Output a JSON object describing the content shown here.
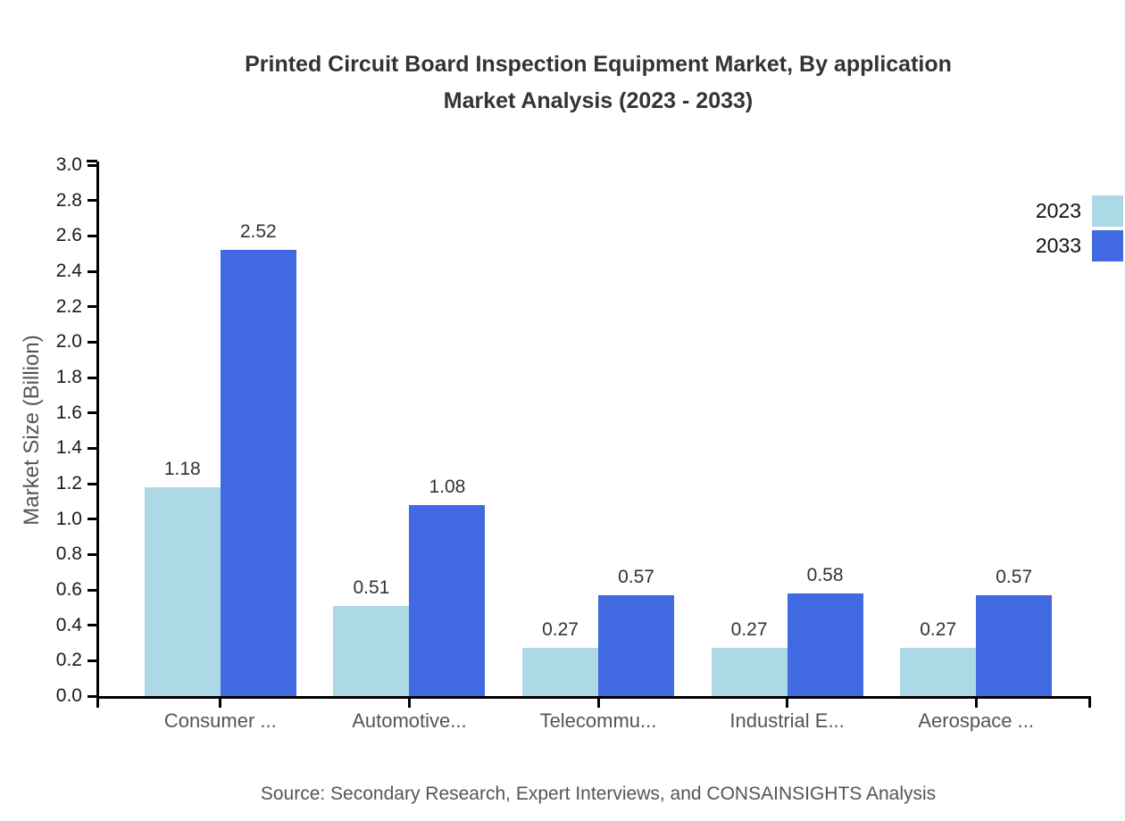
{
  "title": {
    "line1": "Printed Circuit Board Inspection Equipment Market, By application",
    "line2": "Market Analysis (2023 - 2033)"
  },
  "legend": {
    "items": [
      {
        "label": "2023",
        "color": "#ADD8E6"
      },
      {
        "label": "2033",
        "color": "#4169E1"
      }
    ]
  },
  "y_axis": {
    "label": "Market Size (Billion)",
    "tick_labels": [
      "0.0",
      "0.2",
      "0.4",
      "0.6",
      "0.8",
      "1.0",
      "1.2",
      "1.4",
      "1.6",
      "1.8",
      "2.0",
      "2.2",
      "2.4",
      "2.6",
      "2.8",
      "3.0"
    ]
  },
  "source": "Source: Secondary Research, Expert Interviews, and CONSAINSIGHTS Analysis",
  "chart_data": {
    "type": "bar",
    "title": "Printed Circuit Board Inspection Equipment Market, By application Market Analysis (2023 - 2033)",
    "categories": [
      "Consumer ...",
      "Automotive...",
      "Telecommu...",
      "Industrial E...",
      "Aerospace ..."
    ],
    "series": [
      {
        "name": "2023",
        "color": "#ADD8E6",
        "values": [
          1.18,
          0.51,
          0.27,
          0.27,
          0.27
        ]
      },
      {
        "name": "2033",
        "color": "#4169E1",
        "values": [
          2.52,
          1.08,
          0.57,
          0.58,
          0.57
        ]
      }
    ],
    "xlabel": "",
    "ylabel": "Market Size (Billion)",
    "ylim": [
      0.0,
      3.0
    ],
    "ytick_step": 0.2,
    "grid": false,
    "legend_position": "top-right",
    "value_labels": true
  }
}
